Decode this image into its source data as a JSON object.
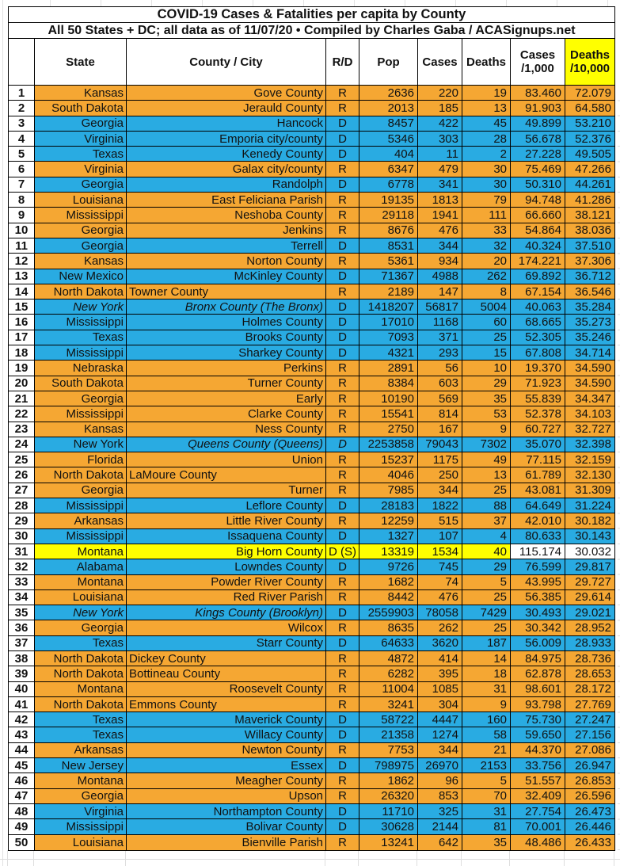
{
  "title": {
    "line1": "COVID-19 Cases & Fatalities per capita by County",
    "line2": "All 50 States + DC; all data as of 11/07/20  • Compiled by Charles Gaba / ACASignups.net"
  },
  "header": {
    "rank": "",
    "state": "State",
    "county": "County / City",
    "rd": "R/D",
    "pop": "Pop",
    "cases": "Cases",
    "deaths": "Deaths",
    "cases_per": {
      "l1": "Cases",
      "l2": "/1,000"
    },
    "deaths_per": {
      "l1": "Deaths",
      "l2": "/10,000"
    }
  },
  "colors": {
    "republican_row": "#F5A733",
    "democrat_row": "#29ABE2",
    "highlight_row": "#FFFF00",
    "deaths_header_bg": "#FFFF00",
    "border": "#000000",
    "plain_cell": "#FFFFFF"
  },
  "rows": [
    {
      "n": 1,
      "st": "Kansas",
      "co": "Gove County",
      "rd": "R",
      "pop": "2636",
      "cs": "220",
      "dt": "19",
      "c1k": "83.460",
      "d10k": "72.079",
      "p": "R"
    },
    {
      "n": 2,
      "st": "South Dakota",
      "co": "Jerauld County",
      "rd": "R",
      "pop": "2013",
      "cs": "185",
      "dt": "13",
      "c1k": "91.903",
      "d10k": "64.580",
      "p": "R"
    },
    {
      "n": 3,
      "st": "Georgia",
      "co": "Hancock",
      "rd": "D",
      "pop": "8457",
      "cs": "422",
      "dt": "45",
      "c1k": "49.899",
      "d10k": "53.210",
      "p": "D"
    },
    {
      "n": 4,
      "st": "Virginia",
      "co": "Emporia city/county",
      "rd": "D",
      "pop": "5346",
      "cs": "303",
      "dt": "28",
      "c1k": "56.678",
      "d10k": "52.376",
      "p": "D"
    },
    {
      "n": 5,
      "st": "Texas",
      "co": "Kenedy County",
      "rd": "D",
      "pop": "404",
      "cs": "11",
      "dt": "2",
      "c1k": "27.228",
      "d10k": "49.505",
      "p": "D"
    },
    {
      "n": 6,
      "st": "Virginia",
      "co": "Galax city/county",
      "rd": "R",
      "pop": "6347",
      "cs": "479",
      "dt": "30",
      "c1k": "75.469",
      "d10k": "47.266",
      "p": "R"
    },
    {
      "n": 7,
      "st": "Georgia",
      "co": "Randolph",
      "rd": "D",
      "pop": "6778",
      "cs": "341",
      "dt": "30",
      "c1k": "50.310",
      "d10k": "44.261",
      "p": "D"
    },
    {
      "n": 8,
      "st": "Louisiana",
      "co": "East Feliciana Parish",
      "rd": "R",
      "pop": "19135",
      "cs": "1813",
      "dt": "79",
      "c1k": "94.748",
      "d10k": "41.286",
      "p": "R"
    },
    {
      "n": 9,
      "st": "Mississippi",
      "co": "Neshoba County",
      "rd": "R",
      "pop": "29118",
      "cs": "1941",
      "dt": "111",
      "c1k": "66.660",
      "d10k": "38.121",
      "p": "R"
    },
    {
      "n": 10,
      "st": "Georgia",
      "co": "Jenkins",
      "rd": "R",
      "pop": "8676",
      "cs": "476",
      "dt": "33",
      "c1k": "54.864",
      "d10k": "38.036",
      "p": "R"
    },
    {
      "n": 11,
      "st": "Georgia",
      "co": "Terrell",
      "rd": "D",
      "pop": "8531",
      "cs": "344",
      "dt": "32",
      "c1k": "40.324",
      "d10k": "37.510",
      "p": "D"
    },
    {
      "n": 12,
      "st": "Kansas",
      "co": "Norton County",
      "rd": "R",
      "pop": "5361",
      "cs": "934",
      "dt": "20",
      "c1k": "174.221",
      "d10k": "37.306",
      "p": "R"
    },
    {
      "n": 13,
      "st": "New Mexico",
      "co": "McKinley County",
      "rd": "D",
      "pop": "71367",
      "cs": "4988",
      "dt": "262",
      "c1k": "69.892",
      "d10k": "36.712",
      "p": "D"
    },
    {
      "n": 14,
      "st": "North Dakota",
      "co": "Towner County",
      "rd": "R",
      "pop": "2189",
      "cs": "147",
      "dt": "8",
      "c1k": "67.154",
      "d10k": "36.546",
      "p": "R",
      "la": true
    },
    {
      "n": 15,
      "st": "New York",
      "co": "Bronx County (The Bronx)",
      "rd": "D",
      "pop": "1418207",
      "cs": "56817",
      "dt": "5004",
      "c1k": "40.063",
      "d10k": "35.284",
      "p": "D",
      "is": true,
      "ic": true
    },
    {
      "n": 16,
      "st": "Mississippi",
      "co": "Holmes County",
      "rd": "D",
      "pop": "17010",
      "cs": "1168",
      "dt": "60",
      "c1k": "68.665",
      "d10k": "35.273",
      "p": "D"
    },
    {
      "n": 17,
      "st": "Texas",
      "co": "Brooks County",
      "rd": "D",
      "pop": "7093",
      "cs": "371",
      "dt": "25",
      "c1k": "52.305",
      "d10k": "35.246",
      "p": "D"
    },
    {
      "n": 18,
      "st": "Mississippi",
      "co": "Sharkey County",
      "rd": "D",
      "pop": "4321",
      "cs": "293",
      "dt": "15",
      "c1k": "67.808",
      "d10k": "34.714",
      "p": "D"
    },
    {
      "n": 19,
      "st": "Nebraska",
      "co": "Perkins",
      "rd": "R",
      "pop": "2891",
      "cs": "56",
      "dt": "10",
      "c1k": "19.370",
      "d10k": "34.590",
      "p": "R"
    },
    {
      "n": 20,
      "st": "South Dakota",
      "co": "Turner County",
      "rd": "R",
      "pop": "8384",
      "cs": "603",
      "dt": "29",
      "c1k": "71.923",
      "d10k": "34.590",
      "p": "R"
    },
    {
      "n": 21,
      "st": "Georgia",
      "co": "Early",
      "rd": "R",
      "pop": "10190",
      "cs": "569",
      "dt": "35",
      "c1k": "55.839",
      "d10k": "34.347",
      "p": "R"
    },
    {
      "n": 22,
      "st": "Mississippi",
      "co": "Clarke County",
      "rd": "R",
      "pop": "15541",
      "cs": "814",
      "dt": "53",
      "c1k": "52.378",
      "d10k": "34.103",
      "p": "R"
    },
    {
      "n": 23,
      "st": "Kansas",
      "co": "Ness County",
      "rd": "R",
      "pop": "2750",
      "cs": "167",
      "dt": "9",
      "c1k": "60.727",
      "d10k": "32.727",
      "p": "R"
    },
    {
      "n": 24,
      "st": "New York",
      "co": "Queens County (Queens)",
      "rd": "D",
      "pop": "2253858",
      "cs": "79043",
      "dt": "7302",
      "c1k": "35.070",
      "d10k": "32.398",
      "p": "D",
      "ic": true,
      "ir": true
    },
    {
      "n": 25,
      "st": "Florida",
      "co": "Union",
      "rd": "R",
      "pop": "15237",
      "cs": "1175",
      "dt": "49",
      "c1k": "77.115",
      "d10k": "32.159",
      "p": "R"
    },
    {
      "n": 26,
      "st": "North Dakota",
      "co": "LaMoure County",
      "rd": "R",
      "pop": "4046",
      "cs": "250",
      "dt": "13",
      "c1k": "61.789",
      "d10k": "32.130",
      "p": "R",
      "la": true
    },
    {
      "n": 27,
      "st": "Georgia",
      "co": "Turner",
      "rd": "R",
      "pop": "7985",
      "cs": "344",
      "dt": "25",
      "c1k": "43.081",
      "d10k": "31.309",
      "p": "R"
    },
    {
      "n": 28,
      "st": "Mississippi",
      "co": "Leflore County",
      "rd": "D",
      "pop": "28183",
      "cs": "1822",
      "dt": "88",
      "c1k": "64.649",
      "d10k": "31.224",
      "p": "D"
    },
    {
      "n": 29,
      "st": "Arkansas",
      "co": "Little River County",
      "rd": "R",
      "pop": "12259",
      "cs": "515",
      "dt": "37",
      "c1k": "42.010",
      "d10k": "30.182",
      "p": "R"
    },
    {
      "n": 30,
      "st": "Mississippi",
      "co": "Issaquena County",
      "rd": "D",
      "pop": "1327",
      "cs": "107",
      "dt": "4",
      "c1k": "80.633",
      "d10k": "30.143",
      "p": "D"
    },
    {
      "n": 31,
      "st": "Montana",
      "co": "Big Horn County",
      "rd": "D (S)",
      "pop": "13319",
      "cs": "1534",
      "dt": "40",
      "c1k": "115.174",
      "d10k": "30.032",
      "p": "S",
      "w2": true
    },
    {
      "n": 32,
      "st": "Alabama",
      "co": "Lowndes County",
      "rd": "D",
      "pop": "9726",
      "cs": "745",
      "dt": "29",
      "c1k": "76.599",
      "d10k": "29.817",
      "p": "D"
    },
    {
      "n": 33,
      "st": "Montana",
      "co": "Powder River County",
      "rd": "R",
      "pop": "1682",
      "cs": "74",
      "dt": "5",
      "c1k": "43.995",
      "d10k": "29.727",
      "p": "R"
    },
    {
      "n": 34,
      "st": "Louisiana",
      "co": "Red River Parish",
      "rd": "R",
      "pop": "8442",
      "cs": "476",
      "dt": "25",
      "c1k": "56.385",
      "d10k": "29.614",
      "p": "R"
    },
    {
      "n": 35,
      "st": "New York",
      "co": "Kings County (Brooklyn)",
      "rd": "D",
      "pop": "2559903",
      "cs": "78058",
      "dt": "7429",
      "c1k": "30.493",
      "d10k": "29.021",
      "p": "D",
      "is": true,
      "ic": true
    },
    {
      "n": 36,
      "st": "Georgia",
      "co": "Wilcox",
      "rd": "R",
      "pop": "8635",
      "cs": "262",
      "dt": "25",
      "c1k": "30.342",
      "d10k": "28.952",
      "p": "R"
    },
    {
      "n": 37,
      "st": "Texas",
      "co": "Starr County",
      "rd": "D",
      "pop": "64633",
      "cs": "3620",
      "dt": "187",
      "c1k": "56.009",
      "d10k": "28.933",
      "p": "D"
    },
    {
      "n": 38,
      "st": "North Dakota",
      "co": "Dickey County",
      "rd": "R",
      "pop": "4872",
      "cs": "414",
      "dt": "14",
      "c1k": "84.975",
      "d10k": "28.736",
      "p": "R",
      "la": true
    },
    {
      "n": 39,
      "st": "North Dakota",
      "co": "Bottineau County",
      "rd": "R",
      "pop": "6282",
      "cs": "395",
      "dt": "18",
      "c1k": "62.878",
      "d10k": "28.653",
      "p": "R",
      "la": true
    },
    {
      "n": 40,
      "st": "Montana",
      "co": "Roosevelt County",
      "rd": "R",
      "pop": "11004",
      "cs": "1085",
      "dt": "31",
      "c1k": "98.601",
      "d10k": "28.172",
      "p": "R"
    },
    {
      "n": 41,
      "st": "North Dakota",
      "co": "Emmons County",
      "rd": "R",
      "pop": "3241",
      "cs": "304",
      "dt": "9",
      "c1k": "93.798",
      "d10k": "27.769",
      "p": "R",
      "la": true
    },
    {
      "n": 42,
      "st": "Texas",
      "co": "Maverick County",
      "rd": "D",
      "pop": "58722",
      "cs": "4447",
      "dt": "160",
      "c1k": "75.730",
      "d10k": "27.247",
      "p": "D"
    },
    {
      "n": 43,
      "st": "Texas",
      "co": "Willacy County",
      "rd": "D",
      "pop": "21358",
      "cs": "1274",
      "dt": "58",
      "c1k": "59.650",
      "d10k": "27.156",
      "p": "D"
    },
    {
      "n": 44,
      "st": "Arkansas",
      "co": "Newton County",
      "rd": "R",
      "pop": "7753",
      "cs": "344",
      "dt": "21",
      "c1k": "44.370",
      "d10k": "27.086",
      "p": "R"
    },
    {
      "n": 45,
      "st": "New Jersey",
      "co": "Essex",
      "rd": "D",
      "pop": "798975",
      "cs": "26970",
      "dt": "2153",
      "c1k": "33.756",
      "d10k": "26.947",
      "p": "D"
    },
    {
      "n": 46,
      "st": "Montana",
      "co": "Meagher County",
      "rd": "R",
      "pop": "1862",
      "cs": "96",
      "dt": "5",
      "c1k": "51.557",
      "d10k": "26.853",
      "p": "R"
    },
    {
      "n": 47,
      "st": "Georgia",
      "co": "Upson",
      "rd": "R",
      "pop": "26320",
      "cs": "853",
      "dt": "70",
      "c1k": "32.409",
      "d10k": "26.596",
      "p": "R"
    },
    {
      "n": 48,
      "st": "Virginia",
      "co": "Northampton County",
      "rd": "D",
      "pop": "11710",
      "cs": "325",
      "dt": "31",
      "c1k": "27.754",
      "d10k": "26.473",
      "p": "D"
    },
    {
      "n": 49,
      "st": "Mississippi",
      "co": "Bolivar County",
      "rd": "D",
      "pop": "30628",
      "cs": "2144",
      "dt": "81",
      "c1k": "70.001",
      "d10k": "26.446",
      "p": "D"
    },
    {
      "n": 50,
      "st": "Louisiana",
      "co": "Bienville Parish",
      "rd": "R",
      "pop": "13241",
      "cs": "642",
      "dt": "35",
      "c1k": "48.486",
      "d10k": "26.433",
      "p": "R"
    }
  ]
}
